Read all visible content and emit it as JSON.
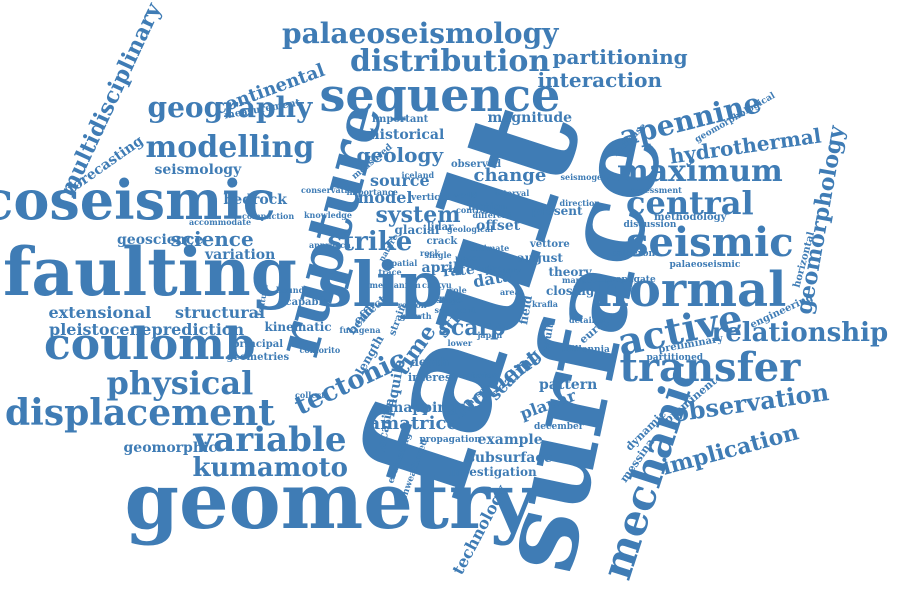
{
  "accent_color": "#3f7cb5",
  "background_color": "#ffffff",
  "words": [
    "fault",
    "surface",
    "geometry",
    "faulting",
    "coseismic",
    "rupture",
    "coulomb",
    "normal",
    "sequence",
    "slip",
    "seismic",
    "transfer",
    "mechanic",
    "displacement",
    "physical",
    "variable",
    "active",
    "central",
    "maximum",
    "apennine",
    "distribution",
    "palaeoseismology",
    "modelling",
    "geography",
    "relationship",
    "kumamoto",
    "observation",
    "tectonic",
    "implication",
    "geomorphology",
    "multidisciplinary",
    "interaction",
    "partitioning",
    "strike",
    "scarp",
    "moment",
    "hydrothermal",
    "science",
    "system",
    "geology",
    "seismology",
    "pleistocene",
    "prediction",
    "extensional",
    "structural",
    "geoscience",
    "bedrock",
    "continental",
    "forecasting",
    "historical",
    "source",
    "model",
    "change",
    "magnitude",
    "variation",
    "geomorphic",
    "amatrice",
    "example",
    "subsurface",
    "investigation",
    "technology",
    "pattern",
    "planar",
    "scaling",
    "offset",
    "data",
    "rate",
    "april",
    "time",
    "str",
    "mapping",
    "depth",
    "interest",
    "l'aquila",
    "location",
    "glacial",
    "crack",
    "theory",
    "closing",
    "present",
    "europe",
    "millennia",
    "december",
    "messina",
    "dynamic",
    "prominent",
    "engineering",
    "horizontal",
    "methodology",
    "discussion",
    "calderon",
    "palaeoseismic",
    "propagate",
    "preliminary",
    "partitioned",
    "increase",
    "geomorphological",
    "assessment",
    "seismogenic",
    "observed",
    "important",
    "measurement",
    "measured",
    "conservation",
    "accommodate",
    "compaction",
    "knowledge",
    "vertical",
    "iceland",
    "approach",
    "capable",
    "kinematic",
    "principal",
    "geometries",
    "evaluating",
    "unweathered",
    "propagation",
    "mission",
    "elapsed",
    "bend",
    "effect",
    "length",
    "strain",
    "august",
    "vettore",
    "direction",
    "mapped",
    "krafla",
    "detailed",
    "result",
    "field",
    "lidar",
    "motion",
    "order",
    "japan",
    "mechanism",
    "bound",
    "feature",
    "colfiorito",
    "fucagena",
    "collect",
    "importance",
    "geological",
    "estimate",
    "nature",
    "control",
    "different",
    "primary",
    "chikyu",
    "world",
    "growth",
    "role",
    "lower",
    "interval",
    "trace",
    "area",
    "single",
    "spatial",
    "rock",
    "upper",
    "region",
    "sediment",
    "zone",
    "level",
    "stress",
    "last",
    "large"
  ]
}
